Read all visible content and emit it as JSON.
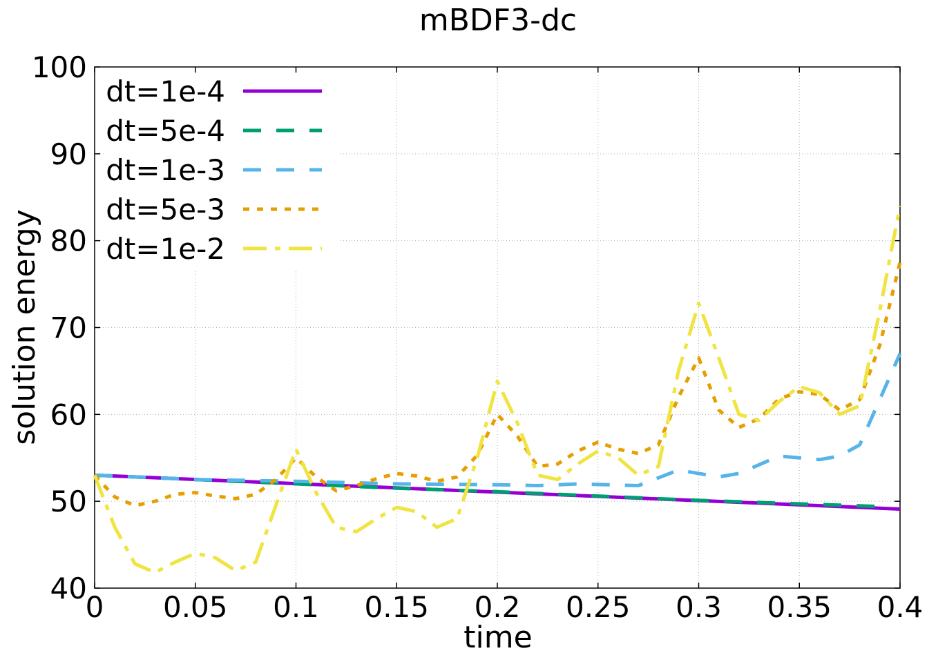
{
  "chart_data": {
    "type": "line",
    "title": "mBDF3-dc",
    "xlabel": "time",
    "ylabel": "solution energy",
    "xlim": [
      0,
      0.4
    ],
    "ylim": [
      40,
      100
    ],
    "xticks": [
      0,
      0.05,
      0.1,
      0.15,
      0.2,
      0.25,
      0.3,
      0.35,
      0.4
    ],
    "xtick_labels": [
      "0",
      "0.05",
      "0.1",
      "0.15",
      "0.2",
      "0.25",
      "0.3",
      "0.35",
      "0.4"
    ],
    "yticks": [
      40,
      50,
      60,
      70,
      80,
      90,
      100
    ],
    "ytick_labels": [
      "40",
      "50",
      "60",
      "70",
      "80",
      "90",
      "100"
    ],
    "grid": true,
    "legend_position": "top-left",
    "series": [
      {
        "name": "dt=1e-4",
        "color": "#9400d3",
        "dash": "solid",
        "x": [
          0,
          0.4
        ],
        "y": [
          53.0,
          49.1
        ]
      },
      {
        "name": "dt=5e-4",
        "color": "#009e73",
        "dash": "long",
        "x": [
          0,
          0.05,
          0.1,
          0.15,
          0.2,
          0.25,
          0.3,
          0.35,
          0.39
        ],
        "y": [
          53.0,
          52.5,
          52.0,
          51.5,
          51.1,
          50.6,
          50.1,
          49.7,
          49.4
        ]
      },
      {
        "name": "dt=1e-3",
        "color": "#56b4e9",
        "dash": "long",
        "x": [
          0,
          0.05,
          0.1,
          0.15,
          0.2,
          0.22,
          0.24,
          0.27,
          0.29,
          0.31,
          0.32,
          0.34,
          0.36,
          0.37,
          0.38,
          0.4
        ],
        "y": [
          53.0,
          52.5,
          52.3,
          52.0,
          51.9,
          51.8,
          52.0,
          51.8,
          53.6,
          52.8,
          53.2,
          55.2,
          54.8,
          55.2,
          56.5,
          67.0
        ]
      },
      {
        "name": "dt=5e-3",
        "color": "#e69f00",
        "dash": "dotted",
        "x": [
          0,
          0.01,
          0.02,
          0.03,
          0.04,
          0.05,
          0.06,
          0.07,
          0.08,
          0.09,
          0.1,
          0.11,
          0.12,
          0.13,
          0.14,
          0.15,
          0.16,
          0.17,
          0.18,
          0.19,
          0.2,
          0.21,
          0.22,
          0.23,
          0.24,
          0.25,
          0.26,
          0.27,
          0.28,
          0.29,
          0.3,
          0.31,
          0.32,
          0.33,
          0.34,
          0.35,
          0.36,
          0.37,
          0.38,
          0.39,
          0.4
        ],
        "y": [
          53.0,
          50.5,
          49.5,
          50.0,
          50.8,
          51.0,
          50.6,
          50.3,
          50.8,
          52.5,
          55.0,
          52.8,
          51.2,
          51.8,
          52.6,
          53.2,
          52.9,
          52.3,
          52.8,
          55.3,
          60.0,
          57.5,
          54.0,
          54.3,
          55.8,
          56.8,
          56.0,
          55.5,
          56.5,
          62.0,
          66.5,
          60.5,
          58.5,
          59.5,
          61.8,
          62.6,
          62.3,
          60.5,
          61.7,
          68.0,
          77.5
        ]
      },
      {
        "name": "dt=1e-2",
        "color": "#f0e442",
        "dash": "long-short",
        "x": [
          0,
          0.01,
          0.02,
          0.03,
          0.04,
          0.05,
          0.06,
          0.07,
          0.08,
          0.09,
          0.1,
          0.11,
          0.12,
          0.13,
          0.14,
          0.15,
          0.16,
          0.17,
          0.18,
          0.19,
          0.2,
          0.21,
          0.22,
          0.23,
          0.24,
          0.25,
          0.26,
          0.27,
          0.28,
          0.29,
          0.3,
          0.31,
          0.32,
          0.33,
          0.34,
          0.35,
          0.36,
          0.37,
          0.38,
          0.39,
          0.4
        ],
        "y": [
          53.0,
          47.0,
          42.8,
          41.8,
          43.0,
          44.0,
          43.5,
          42.0,
          43.0,
          49.5,
          56.0,
          51.0,
          47.0,
          46.5,
          48.0,
          49.3,
          48.8,
          47.0,
          48.0,
          55.0,
          63.8,
          59.0,
          53.0,
          52.5,
          54.3,
          55.8,
          55.0,
          53.0,
          54.0,
          65.0,
          72.8,
          66.5,
          60.0,
          59.3,
          61.5,
          63.2,
          62.5,
          60.0,
          61.0,
          72.0,
          84.0
        ]
      }
    ]
  }
}
